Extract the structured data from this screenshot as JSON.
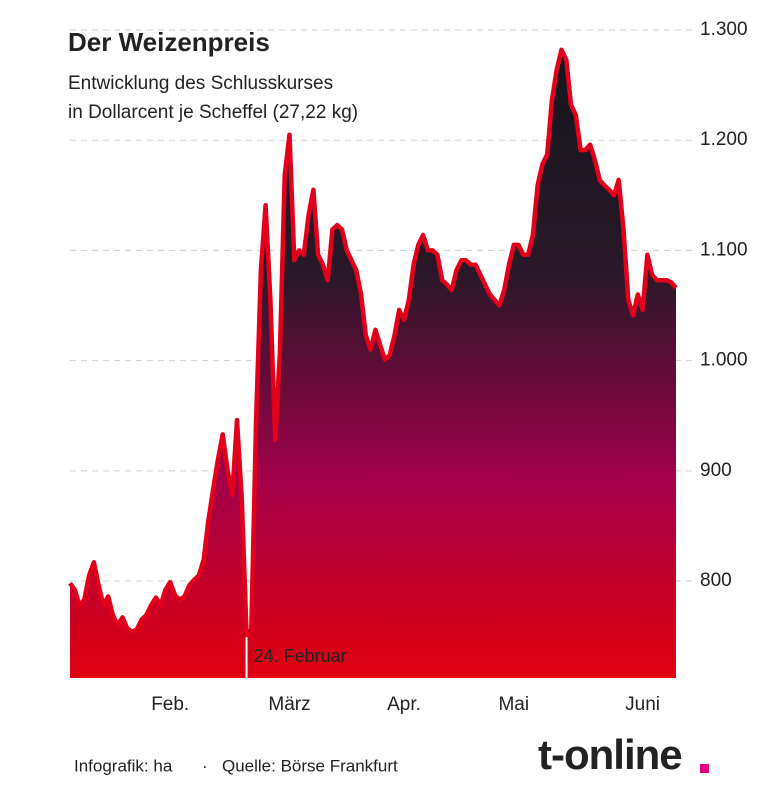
{
  "chart_data": {
    "type": "area",
    "title": "Der Weizenpreis",
    "subtitle": [
      "Entwicklung des Schlusskurses",
      "in Dollarcent je Scheffel (27,22 kg)"
    ],
    "values": [
      798,
      792,
      778,
      783,
      805,
      817,
      796,
      778,
      786,
      769,
      760,
      767,
      757,
      754,
      756,
      765,
      769,
      778,
      785,
      778,
      792,
      799,
      787,
      783,
      786,
      796,
      801,
      805,
      819,
      855,
      883,
      910,
      933,
      901,
      878,
      946,
      874,
      751,
      756,
      946,
      1082,
      1141,
      1055,
      928,
      1010,
      1168,
      1205,
      1091,
      1100,
      1096,
      1132,
      1155,
      1096,
      1087,
      1073,
      1119,
      1123,
      1119,
      1100,
      1091,
      1082,
      1060,
      1023,
      1010,
      1028,
      1014,
      1001,
      1005,
      1023,
      1046,
      1037,
      1055,
      1087,
      1105,
      1114,
      1100,
      1100,
      1096,
      1073,
      1069,
      1064,
      1082,
      1091,
      1091,
      1087,
      1087,
      1078,
      1069,
      1060,
      1055,
      1050,
      1064,
      1087,
      1105,
      1105,
      1096,
      1096,
      1114,
      1159,
      1178,
      1187,
      1236,
      1264,
      1282,
      1273,
      1232,
      1223,
      1191,
      1191,
      1196,
      1182,
      1164,
      1159,
      1155,
      1150,
      1164,
      1119,
      1055,
      1041,
      1060,
      1046,
      1096,
      1078,
      1073,
      1073,
      1073,
      1071,
      1066
    ],
    "color": "#e3001b",
    "ylim": [
      712,
      1300
    ],
    "yticks": [
      800,
      900,
      {
        "value": 1000,
        "label": "1.000"
      },
      {
        "value": 1100,
        "label": "1.100"
      },
      {
        "value": 1200,
        "label": "1.200"
      },
      {
        "value": 1300,
        "label": "1.300"
      }
    ],
    "xticks": [
      {
        "value": 21,
        "label": "Feb."
      },
      {
        "value": 46,
        "label": "März"
      },
      {
        "value": 70,
        "label": "Apr."
      },
      {
        "value": 93,
        "label": "Mai"
      },
      {
        "value": 120,
        "label": "Juni"
      }
    ],
    "annotation": {
      "x": 37,
      "label": "24. Februar"
    },
    "grid": true,
    "footer": {
      "credit": "Infografik: ha",
      "separator": "·",
      "source": "Quelle: Börse Frankfurt",
      "logo": "t-online"
    }
  }
}
